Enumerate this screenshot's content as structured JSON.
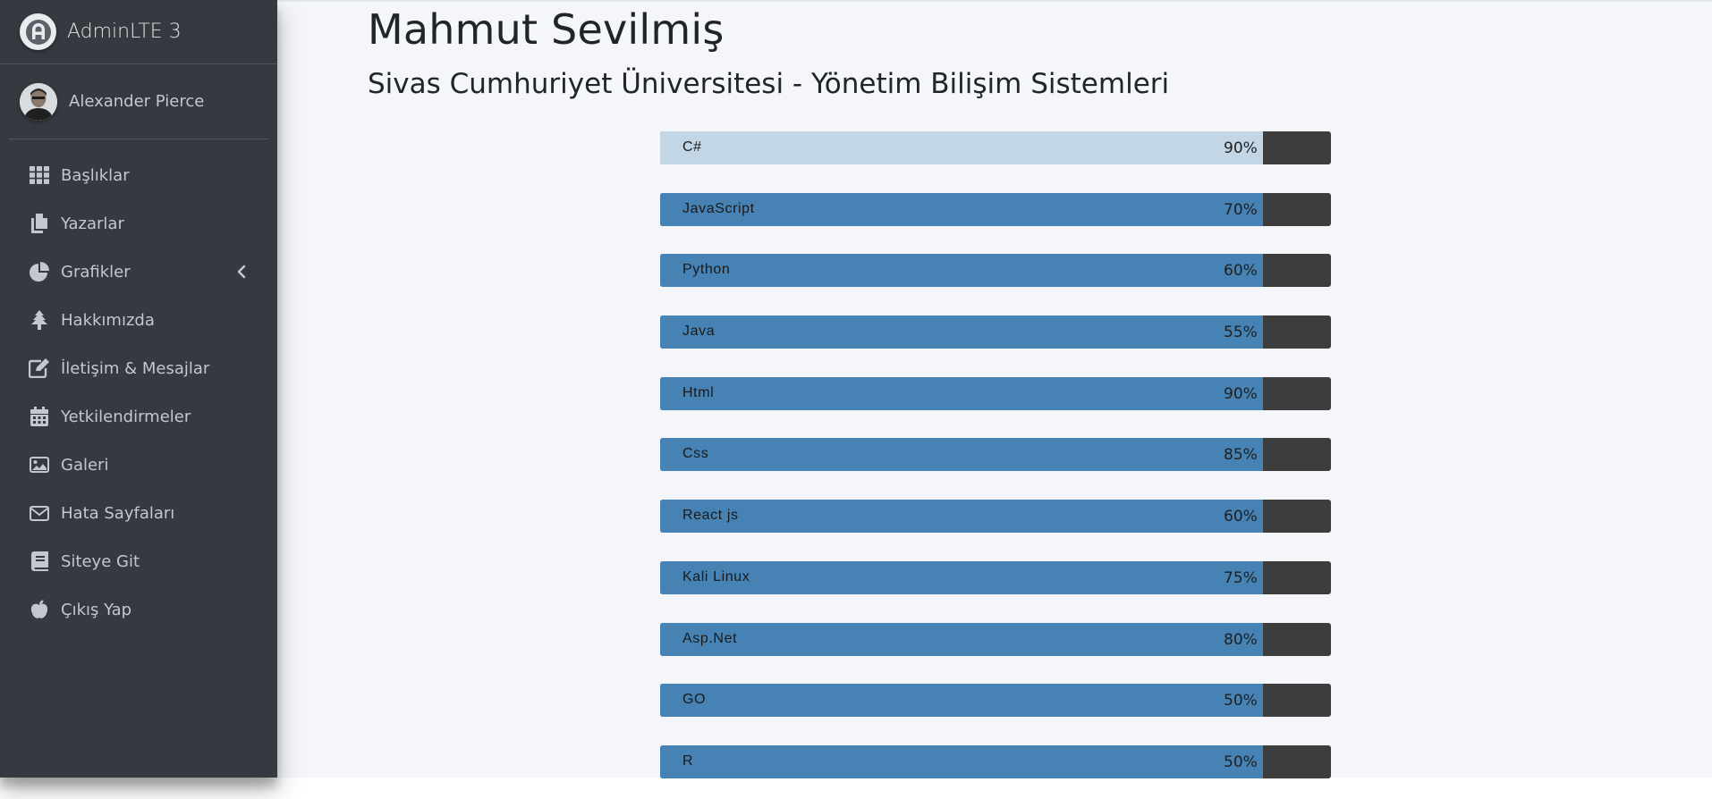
{
  "sidebar": {
    "brand": "AdminLTE 3",
    "user": "Alexander Pierce",
    "items": [
      {
        "label": "Başlıklar",
        "icon": "grid-icon"
      },
      {
        "label": "Yazarlar",
        "icon": "copy-icon"
      },
      {
        "label": "Grafikler",
        "icon": "pie-chart-icon"
      },
      {
        "label": "Hakkımızda",
        "icon": "tree-icon"
      },
      {
        "label": "İletişim & Mesajlar",
        "icon": "edit-icon"
      },
      {
        "label": "Yetkilendirmeler",
        "icon": "calendar-icon"
      },
      {
        "label": "Galeri",
        "icon": "image-icon"
      },
      {
        "label": "Hata Sayfaları",
        "icon": "envelope-icon"
      },
      {
        "label": "Siteye Git",
        "icon": "book-icon"
      },
      {
        "label": "Çıkış Yap",
        "icon": "apple-icon"
      }
    ]
  },
  "main": {
    "title": "Mahmut Sevilmiş",
    "subtitle": "Sivas Cumhuriyet Üniversitesi - Yönetim Bilişim Sistemleri",
    "skills": [
      {
        "name": "C#",
        "percent": "90%"
      },
      {
        "name": "JavaScript",
        "percent": "70%"
      },
      {
        "name": "Python",
        "percent": "60%"
      },
      {
        "name": "Java",
        "percent": "55%"
      },
      {
        "name": "Html",
        "percent": "90%"
      },
      {
        "name": "Css",
        "percent": "85%"
      },
      {
        "name": "React js",
        "percent": "60%"
      },
      {
        "name": "Kali Linux",
        "percent": "75%"
      },
      {
        "name": "Asp.Net",
        "percent": "80%"
      },
      {
        "name": "GO",
        "percent": "50%"
      },
      {
        "name": "R",
        "percent": "50%"
      }
    ]
  },
  "colors": {
    "sidebar_bg": "#343a40",
    "bar_fill": "#4682b4",
    "bar_fill_active": "#c2d6e5",
    "bar_track": "#3d3d3d",
    "main_bg": "#f4f6f9"
  }
}
